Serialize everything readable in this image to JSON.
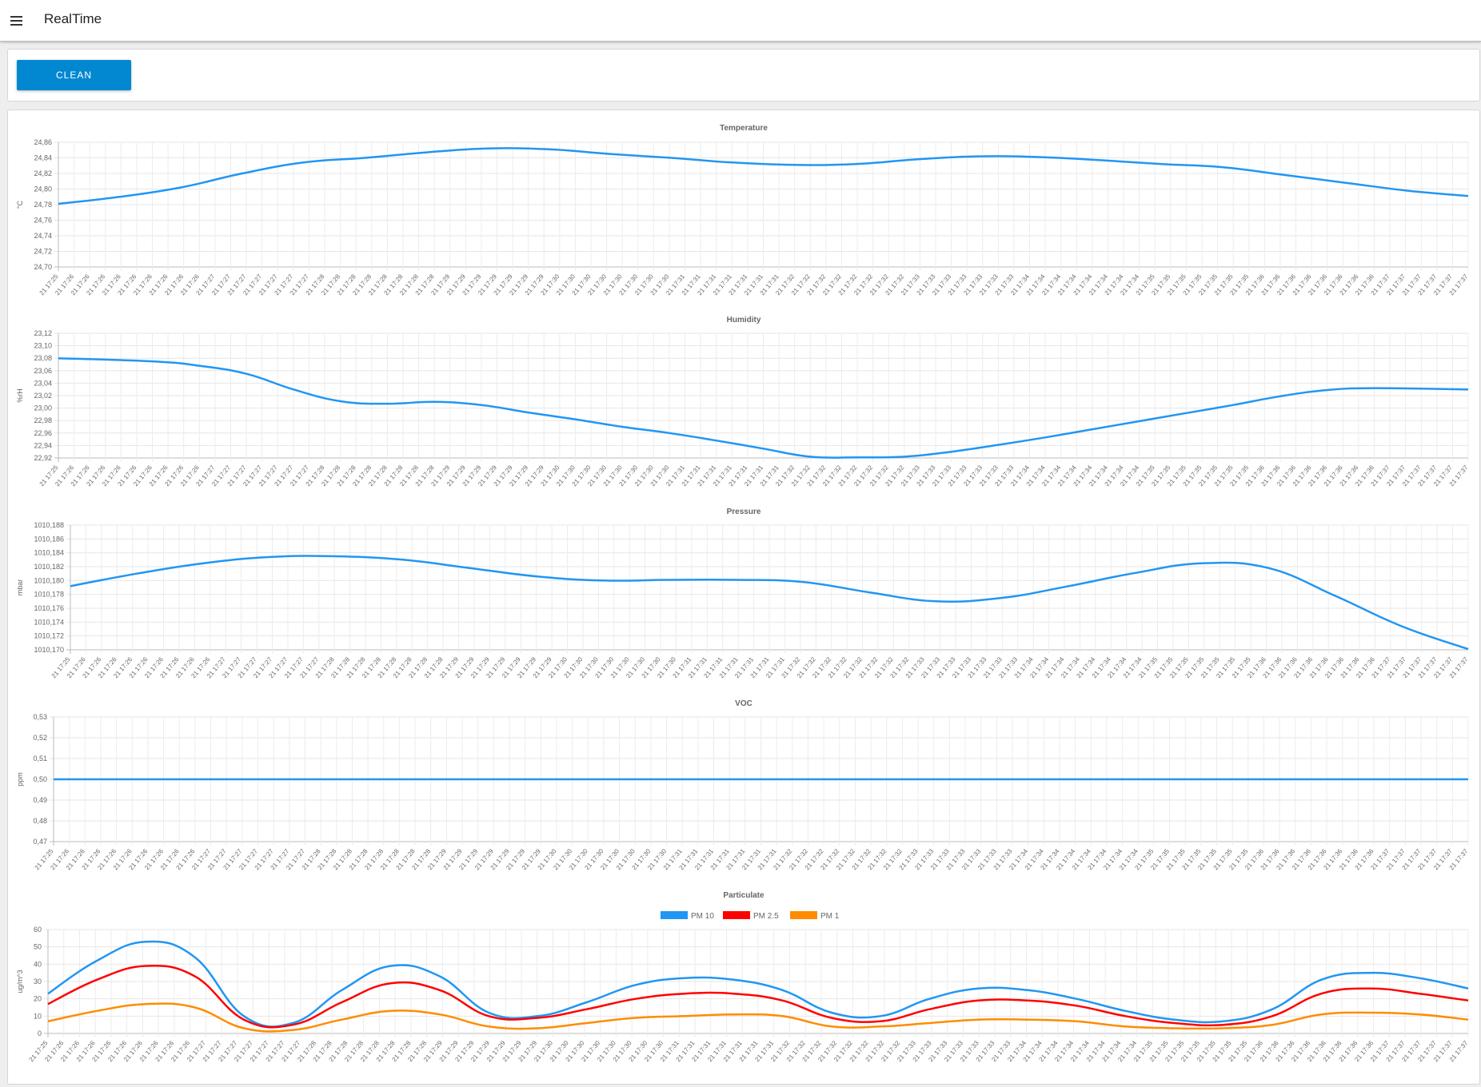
{
  "app": {
    "title": "RealTime",
    "menu_icon": "hamburger-menu-icon"
  },
  "toolbar": {
    "clean_label": "CLEAN",
    "clean_color": "#0288d1"
  },
  "time_labels": [
    "21 17:25",
    "21 17:26",
    "21 17:26",
    "21 17:26",
    "21 17:26",
    "21 17:26",
    "21 17:26",
    "21 17:26",
    "21 17:26",
    "21 17:26",
    "21 17:27",
    "21 17:27",
    "21 17:27",
    "21 17:27",
    "21 17:27",
    "21 17:27",
    "21 17:27",
    "21 17:28",
    "21 17:28",
    "21 17:28",
    "21 17:28",
    "21 17:28",
    "21 17:28",
    "21 17:28",
    "21 17:28",
    "21 17:29",
    "21 17:29",
    "21 17:29",
    "21 17:29",
    "21 17:29",
    "21 17:29",
    "21 17:29",
    "21 17:30",
    "21 17:30",
    "21 17:30",
    "21 17:30",
    "21 17:30",
    "21 17:30",
    "21 17:30",
    "21 17:30",
    "21 17:31",
    "21 17:31",
    "21 17:31",
    "21 17:31",
    "21 17:31",
    "21 17:31",
    "21 17:31",
    "21 17:32",
    "21 17:32",
    "21 17:32",
    "21 17:32",
    "21 17:32",
    "21 17:32",
    "21 17:32",
    "21 17:32",
    "21 17:33",
    "21 17:33",
    "21 17:33",
    "21 17:33",
    "21 17:33",
    "21 17:33",
    "21 17:33",
    "21 17:34",
    "21 17:34",
    "21 17:34",
    "21 17:34",
    "21 17:34",
    "21 17:34",
    "21 17:34",
    "21 17:34",
    "21 17:35",
    "21 17:35",
    "21 17:35",
    "21 17:35",
    "21 17:35",
    "21 17:35",
    "21 17:35",
    "21 17:36",
    "21 17:36",
    "21 17:36",
    "21 17:36",
    "21 17:36",
    "21 17:36",
    "21 17:36",
    "21 17:36",
    "21 17:37",
    "21 17:37",
    "21 17:37",
    "21 17:37",
    "21 17:37",
    "21 17:37"
  ],
  "chart_data": [
    {
      "type": "line",
      "title": "Temperature",
      "ylabel": "°C",
      "ylim": [
        24.7,
        24.86
      ],
      "yticks": [
        "24,86",
        "24,84",
        "24,82",
        "24,80",
        "24,78",
        "24,76",
        "24,74",
        "24,72",
        "24,70"
      ],
      "grid": true,
      "series": [
        {
          "color": "#2196f3",
          "points": [
            [
              0,
              24.781
            ],
            [
              7,
              24.79
            ],
            [
              14,
              24.802
            ],
            [
              21,
              24.82
            ],
            [
              28,
              24.834
            ],
            [
              35,
              24.84
            ],
            [
              42,
              24.847
            ],
            [
              49,
              24.852
            ],
            [
              56,
              24.851
            ],
            [
              63,
              24.845
            ],
            [
              70,
              24.84
            ],
            [
              77,
              24.834
            ],
            [
              84,
              24.831
            ],
            [
              91,
              24.832
            ],
            [
              98,
              24.838
            ],
            [
              105,
              24.842
            ],
            [
              112,
              24.841
            ],
            [
              119,
              24.837
            ],
            [
              126,
              24.832
            ],
            [
              133,
              24.828
            ],
            [
              140,
              24.818
            ],
            [
              147,
              24.808
            ],
            [
              154,
              24.798
            ],
            [
              161,
              24.791
            ]
          ]
        }
      ]
    },
    {
      "type": "line",
      "title": "Humidity",
      "ylabel": "%rH",
      "ylim": [
        22.92,
        23.12
      ],
      "yticks": [
        "23,12",
        "23,10",
        "23,08",
        "23,06",
        "23,04",
        "23,02",
        "23,00",
        "22,98",
        "22,96",
        "22,94",
        "22,92"
      ],
      "grid": true,
      "series": [
        {
          "color": "#2196f3",
          "points": [
            [
              0,
              23.08
            ],
            [
              10,
              23.075
            ],
            [
              15,
              23.068
            ],
            [
              20,
              23.055
            ],
            [
              25,
              23.03
            ],
            [
              30,
              23.011
            ],
            [
              35,
              23.007
            ],
            [
              40,
              23.01
            ],
            [
              45,
              23.005
            ],
            [
              50,
              22.993
            ],
            [
              55,
              22.982
            ],
            [
              60,
              22.97
            ],
            [
              65,
              22.96
            ],
            [
              70,
              22.948
            ],
            [
              75,
              22.935
            ],
            [
              80,
              22.922
            ],
            [
              85,
              22.921
            ],
            [
              90,
              22.922
            ],
            [
              95,
              22.93
            ],
            [
              100,
              22.941
            ],
            [
              105,
              22.953
            ],
            [
              110,
              22.966
            ],
            [
              115,
              22.979
            ],
            [
              120,
              22.992
            ],
            [
              125,
              23.005
            ],
            [
              130,
              23.019
            ],
            [
              135,
              23.029
            ],
            [
              140,
              23.032
            ],
            [
              150,
              23.03
            ]
          ]
        }
      ]
    },
    {
      "type": "line",
      "title": "Pressure",
      "ylabel": "mbar",
      "ylim": [
        1010.17,
        1010.188
      ],
      "yticks": [
        "1010,188",
        "1010,186",
        "1010,184",
        "1010,182",
        "1010,180",
        "1010,178",
        "1010,176",
        "1010,174",
        "1010,172",
        "1010,170"
      ],
      "grid": true,
      "series": [
        {
          "color": "#2196f3",
          "points": [
            [
              0,
              1010.1792
            ],
            [
              6,
              1010.181
            ],
            [
              12,
              1010.1825
            ],
            [
              18,
              1010.1834
            ],
            [
              24,
              1010.1835
            ],
            [
              30,
              1010.183
            ],
            [
              36,
              1010.1818
            ],
            [
              42,
              1010.1806
            ],
            [
              48,
              1010.18
            ],
            [
              54,
              1010.1801
            ],
            [
              60,
              1010.1801
            ],
            [
              66,
              1010.1798
            ],
            [
              72,
              1010.1783
            ],
            [
              78,
              1010.177
            ],
            [
              84,
              1010.1775
            ],
            [
              90,
              1010.1792
            ],
            [
              96,
              1010.1811
            ],
            [
              102,
              1010.1825
            ],
            [
              108,
              1010.1818
            ],
            [
              114,
              1010.1778
            ],
            [
              120,
              1010.1734
            ],
            [
              126,
              1010.1701
            ]
          ]
        }
      ]
    },
    {
      "type": "line",
      "title": "VOC",
      "ylabel": "ppm",
      "ylim": [
        0.47,
        0.53
      ],
      "yticks": [
        "0,53",
        "0,52",
        "0,51",
        "0,50",
        "0,49",
        "0,48",
        "0,47"
      ],
      "grid": true,
      "series": [
        {
          "color": "#2196f3",
          "points": [
            [
              0,
              0.5
            ],
            [
              150,
              0.5
            ]
          ]
        }
      ]
    },
    {
      "type": "line",
      "title": "Particulate",
      "ylabel": "ug/m^3",
      "ylim": [
        0,
        60
      ],
      "yticks": [
        "60",
        "50",
        "40",
        "30",
        "20",
        "10",
        "0"
      ],
      "grid": true,
      "legend_position": "top-center",
      "series": [
        {
          "name": "PM 10",
          "color": "#2196f3",
          "points": [
            [
              0,
              23
            ],
            [
              5,
              42
            ],
            [
              10,
              53
            ],
            [
              15,
              44
            ],
            [
              20,
              10
            ],
            [
              25,
              6
            ],
            [
              30,
              25
            ],
            [
              35,
              39
            ],
            [
              40,
              33
            ],
            [
              45,
              12
            ],
            [
              50,
              10
            ],
            [
              55,
              18
            ],
            [
              60,
              28
            ],
            [
              65,
              32
            ],
            [
              70,
              31
            ],
            [
              75,
              25
            ],
            [
              80,
              12
            ],
            [
              85,
              10
            ],
            [
              90,
              20
            ],
            [
              95,
              26
            ],
            [
              100,
              25
            ],
            [
              105,
              20
            ],
            [
              110,
              13
            ],
            [
              115,
              8
            ],
            [
              120,
              7
            ],
            [
              125,
              14
            ],
            [
              130,
              31
            ],
            [
              135,
              35
            ],
            [
              140,
              32
            ],
            [
              145,
              26
            ]
          ]
        },
        {
          "name": "PM 2.5",
          "color": "#ff0000",
          "points": [
            [
              0,
              17
            ],
            [
              5,
              31
            ],
            [
              10,
              39
            ],
            [
              15,
              33
            ],
            [
              20,
              8
            ],
            [
              25,
              5
            ],
            [
              30,
              18
            ],
            [
              35,
              29
            ],
            [
              40,
              25
            ],
            [
              45,
              10
            ],
            [
              50,
              9
            ],
            [
              55,
              14
            ],
            [
              60,
              20
            ],
            [
              65,
              23
            ],
            [
              70,
              23
            ],
            [
              75,
              19
            ],
            [
              80,
              9
            ],
            [
              85,
              7
            ],
            [
              90,
              14
            ],
            [
              95,
              19
            ],
            [
              100,
              19
            ],
            [
              105,
              16
            ],
            [
              110,
              10
            ],
            [
              115,
              6
            ],
            [
              120,
              5
            ],
            [
              125,
              10
            ],
            [
              130,
              23
            ],
            [
              135,
              26
            ],
            [
              140,
              23
            ],
            [
              145,
              19
            ]
          ]
        },
        {
          "name": "PM 1",
          "color": "#ff8c00",
          "points": [
            [
              0,
              7
            ],
            [
              5,
              13
            ],
            [
              10,
              17
            ],
            [
              15,
              15
            ],
            [
              20,
              3
            ],
            [
              25,
              2
            ],
            [
              30,
              8
            ],
            [
              35,
              13
            ],
            [
              40,
              11
            ],
            [
              45,
              4
            ],
            [
              50,
              3
            ],
            [
              55,
              6
            ],
            [
              60,
              9
            ],
            [
              65,
              10
            ],
            [
              70,
              11
            ],
            [
              75,
              10
            ],
            [
              80,
              4
            ],
            [
              85,
              4
            ],
            [
              90,
              6
            ],
            [
              95,
              8
            ],
            [
              100,
              8
            ],
            [
              105,
              7
            ],
            [
              110,
              4
            ],
            [
              115,
              3
            ],
            [
              120,
              3
            ],
            [
              125,
              5
            ],
            [
              130,
              11
            ],
            [
              135,
              12
            ],
            [
              140,
              11
            ],
            [
              145,
              8
            ]
          ]
        }
      ]
    }
  ]
}
